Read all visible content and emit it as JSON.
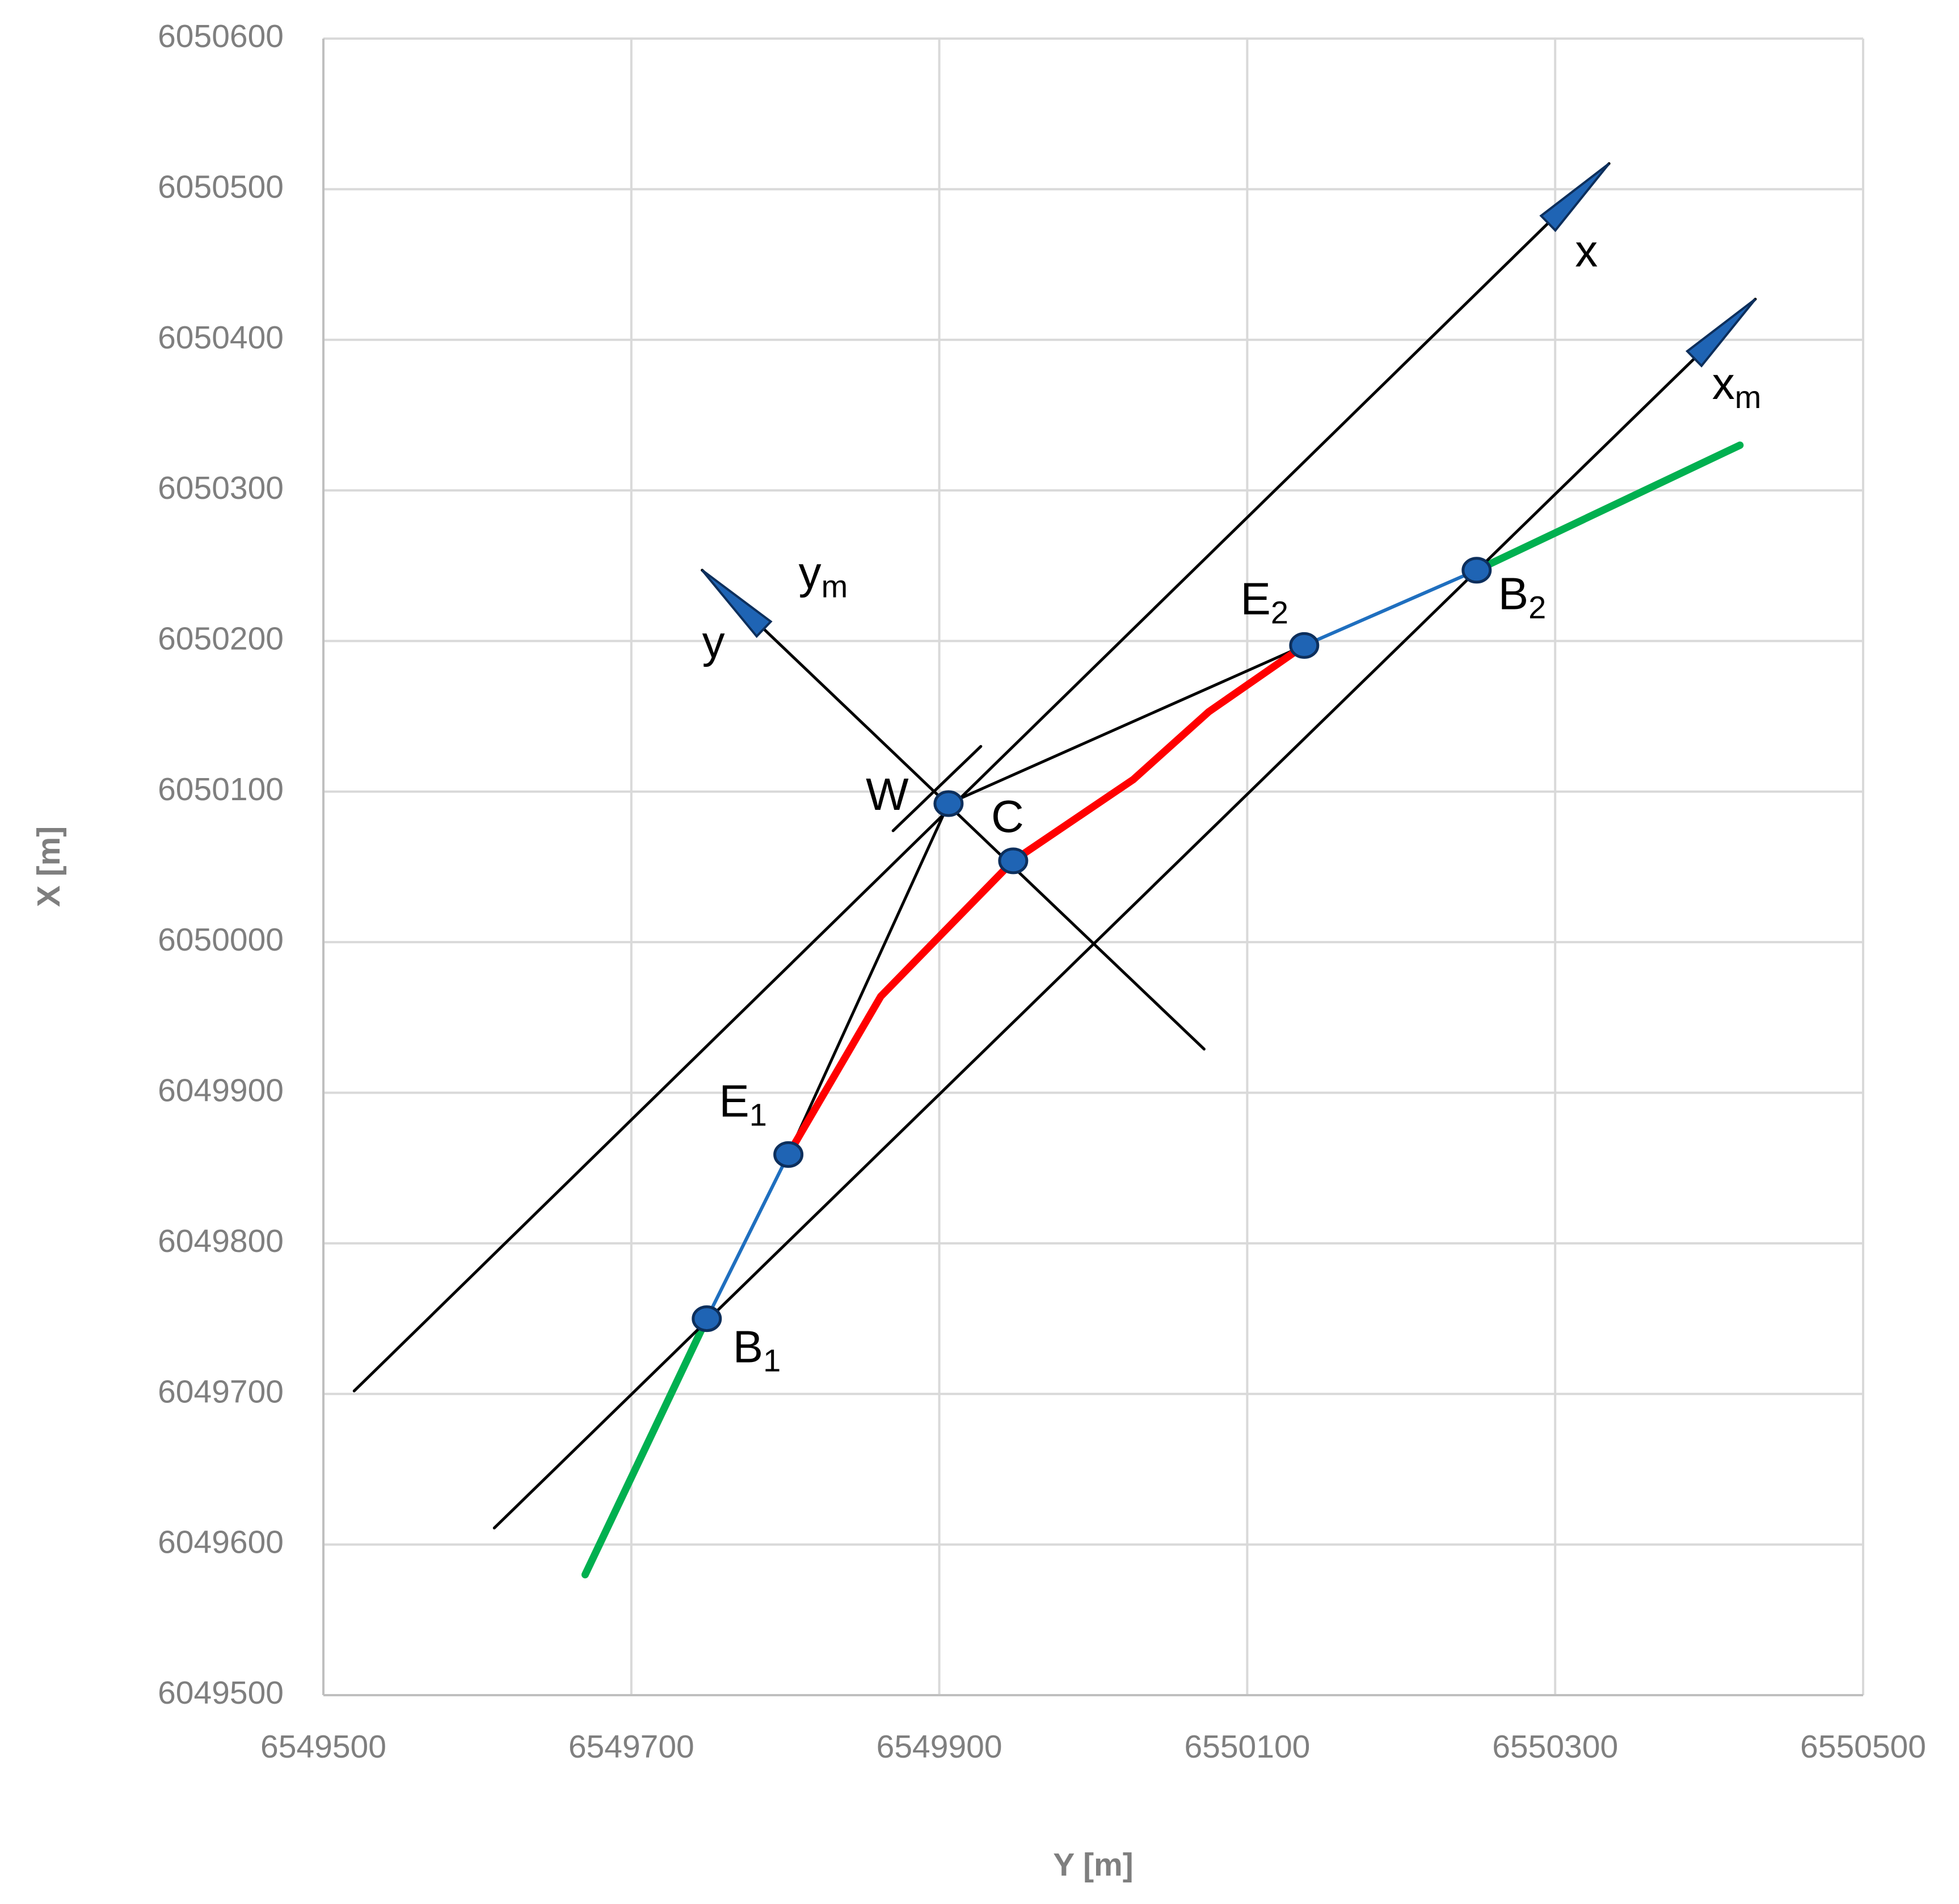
{
  "chart_data": {
    "type": "line",
    "xlabel": "Y [m]",
    "ylabel": "X [m]",
    "xlim": [
      6549500,
      6550500
    ],
    "xticks": [
      6549500,
      6549700,
      6549900,
      6550100,
      6550300,
      6550500
    ],
    "ylim": [
      6049500,
      6050600
    ],
    "yticks": [
      6049500,
      6049600,
      6049700,
      6049800,
      6049900,
      6050000,
      6050100,
      6050200,
      6050300,
      6050400,
      6050500,
      6050600
    ],
    "grid": true,
    "series": [
      {
        "color": "#00b050",
        "x": [
          6549670,
          6549749
        ],
        "values": [
          6049580,
          6049750
        ]
      },
      {
        "color": "#00b050",
        "x": [
          6550249,
          6550420
        ],
        "values": [
          6050247,
          6050330
        ]
      },
      {
        "color": "#000000",
        "x": [
          6549520,
          6550335
        ],
        "values": [
          6049702,
          6050517
        ],
        "arrow": true,
        "labels": [
          {
            "text": "x"
          }
        ]
      },
      {
        "color": "#000000",
        "x": [
          6549611,
          6550430
        ],
        "values": [
          6049611,
          6050427
        ],
        "arrow": true,
        "labels": [
          {
            "text": "x",
            "sub": "m"
          }
        ]
      },
      {
        "color": "#000000",
        "x": [
          6550072,
          6549746
        ],
        "values": [
          6049929,
          6050247
        ],
        "arrow": true,
        "labels": [
          {
            "text": "y"
          },
          {
            "text": "y",
            "sub": "m"
          }
        ]
      },
      {
        "color": "#000000",
        "x": [
          6549870,
          6549927
        ],
        "values": [
          6050074,
          6050130
        ]
      },
      {
        "color": "#000000",
        "x": [
          6549906,
          6549802
        ],
        "values": [
          6050092,
          6049859
        ]
      },
      {
        "color": "#000000",
        "x": [
          6549906,
          6550137
        ],
        "values": [
          6050092,
          6050197
        ]
      },
      {
        "color": "#1f6fbf",
        "x": [
          6549749,
          6549802
        ],
        "values": [
          6049750,
          6049859
        ]
      },
      {
        "color": "#1f6fbf",
        "x": [
          6550137,
          6550249
        ],
        "values": [
          6050197,
          6050247
        ]
      },
      {
        "color": "#ff0000",
        "x": [
          6549802,
          6549862,
          6549948,
          6550026,
          6550075,
          6550137
        ],
        "values": [
          6049859,
          6049964,
          6050054,
          6050108,
          6050153,
          6050197
        ]
      }
    ],
    "points": {
      "color": "#1f64b4",
      "x": [
        6549906,
        6549948,
        6549802,
        6550137,
        6549749,
        6550249
      ],
      "values": [
        6050092,
        6050054,
        6049859,
        6050197,
        6049750,
        6050247
      ],
      "labels": [
        {
          "text": "W"
        },
        {
          "text": "C"
        },
        {
          "text": "E",
          "sub": "1"
        },
        {
          "text": "E",
          "sub": "2"
        },
        {
          "text": "B",
          "sub": "1"
        },
        {
          "text": "B",
          "sub": "2"
        }
      ]
    }
  }
}
